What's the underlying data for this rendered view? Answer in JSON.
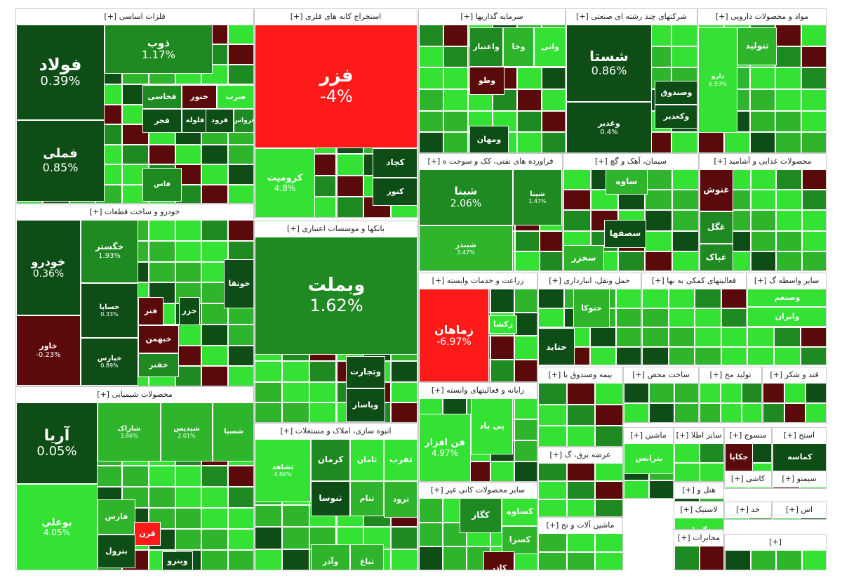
{
  "colors": {
    "dark_green": "#0f4d16",
    "mid_green": "#1f8a22",
    "green": "#2fb52c",
    "light_green": "#33e233",
    "red": "#ff1a1a",
    "dark_red": "#5a0a0a"
  },
  "chart_data": {
    "type": "heatmap",
    "title": "",
    "sectors": [
      {
        "name": "فلزات اساسی [+]",
        "cells": [
          {
            "symbol": "فولاد",
            "change": "0.39%",
            "color": "dark_green"
          },
          {
            "symbol": "فملی",
            "change": "0.85%",
            "color": "dark_green"
          },
          {
            "symbol": "ذوب",
            "change": "1.17%",
            "color": "mid_green"
          },
          {
            "symbol": "خنور",
            "change": "",
            "color": "dark_red"
          },
          {
            "symbol": "ضرب",
            "change": "",
            "color": "light_green"
          },
          {
            "symbol": "فخاسی",
            "change": "",
            "color": "mid_green"
          },
          {
            "symbol": "فجر",
            "change": "",
            "color": "dark_green"
          },
          {
            "symbol": "فلوله",
            "change": "",
            "color": "dark_green"
          },
          {
            "symbol": "فرود",
            "change": "",
            "color": "dark_green"
          },
          {
            "symbol": "فرواس",
            "change": "",
            "color": "mid_green"
          },
          {
            "symbol": "فاس",
            "change": "",
            "color": "mid_green"
          }
        ]
      },
      {
        "name": "استخراج کانه های فلزی [+]",
        "cells": [
          {
            "symbol": "فزر",
            "change": "-4%",
            "color": "red"
          },
          {
            "symbol": "کرومیت",
            "change": "4.8%",
            "color": "light_green"
          },
          {
            "symbol": "کچاد",
            "change": "",
            "color": "dark_green"
          },
          {
            "symbol": "کنور",
            "change": "",
            "color": "dark_green"
          }
        ]
      },
      {
        "name": "سرمایه گذاریها [+]",
        "cells": [
          {
            "symbol": "واعتبار",
            "change": "",
            "color": "mid_green"
          },
          {
            "symbol": "وخا",
            "change": "",
            "color": "green"
          },
          {
            "symbol": "واتي",
            "change": "",
            "color": "light_green"
          },
          {
            "symbol": "وطو",
            "change": "",
            "color": "dark_red"
          },
          {
            "symbol": "ومهان",
            "change": "",
            "color": "dark_green"
          }
        ]
      },
      {
        "name": "شرکتهای چند رشته ای صنعتی [+]",
        "cells": [
          {
            "symbol": "شستا",
            "change": "0.86%",
            "color": "dark_green"
          },
          {
            "symbol": "وصندوق",
            "change": "",
            "color": "dark_green"
          },
          {
            "symbol": "وکغدیر",
            "change": "",
            "color": "dark_green"
          },
          {
            "symbol": "وغدیر",
            "change": "0.4%",
            "color": "dark_green"
          }
        ]
      },
      {
        "name": "مواد و محصولات دارویی [+]",
        "cells": [
          {
            "symbol": "تنولید",
            "change": "",
            "color": "green"
          },
          {
            "symbol": "دارو",
            "change": "6.93%",
            "color": "light_green"
          }
        ]
      },
      {
        "name": "خودرو و ساخت قطعات [+]",
        "cells": [
          {
            "symbol": "خودرو",
            "change": "0.36%",
            "color": "dark_green"
          },
          {
            "symbol": "خاور",
            "change": "-0.23%",
            "color": "dark_red"
          },
          {
            "symbol": "خگستر",
            "change": "1.93%",
            "color": "mid_green"
          },
          {
            "symbol": "خساپا",
            "change": "0.33%",
            "color": "dark_green"
          },
          {
            "symbol": "خپارس",
            "change": "0.89%",
            "color": "dark_green"
          },
          {
            "symbol": "خوتقا",
            "change": "",
            "color": "dark_green"
          },
          {
            "symbol": "فنر",
            "change": "",
            "color": "dark_red"
          },
          {
            "symbol": "خزر",
            "change": "",
            "color": "dark_green"
          },
          {
            "symbol": "خبهمن",
            "change": "",
            "color": "dark_red"
          },
          {
            "symbol": "خفنر",
            "change": "",
            "color": "mid_green"
          }
        ]
      },
      {
        "name": "بانکها و موسسات اعتباری [+]",
        "cells": [
          {
            "symbol": "وبملت",
            "change": "1.62%",
            "color": "mid_green"
          },
          {
            "symbol": "وتجارت",
            "change": "",
            "color": "dark_green"
          },
          {
            "symbol": "وپاسار",
            "change": "",
            "color": "dark_green"
          }
        ]
      },
      {
        "name": "فراورده های نفتی، کک و سوخت ه [+]",
        "cells": [
          {
            "symbol": "شبنا",
            "change": "2.06%",
            "color": "mid_green"
          },
          {
            "symbol": "شپنا",
            "change": "1.47%",
            "color": "mid_green"
          },
          {
            "symbol": "شبندر",
            "change": "3.47%",
            "color": "green"
          }
        ]
      },
      {
        "name": "سیمان، آهک و گچ [+]",
        "cells": [
          {
            "symbol": "ساوه",
            "change": "",
            "color": "green"
          },
          {
            "symbol": "سصفها",
            "change": "",
            "color": "dark_green"
          },
          {
            "symbol": "سخزر",
            "change": "",
            "color": "green"
          }
        ]
      },
      {
        "name": "محصولات غذایی و آشامید [+]",
        "cells": [
          {
            "symbol": "غنوش",
            "change": "",
            "color": "dark_red"
          },
          {
            "symbol": "غگل",
            "change": "",
            "color": "mid_green"
          },
          {
            "symbol": "غپاک",
            "change": "",
            "color": "mid_green"
          }
        ]
      },
      {
        "name": "زراعت و خدمات وابسته [+]",
        "cells": [
          {
            "symbol": "زماهان",
            "change": "-6.97%",
            "color": "red"
          },
          {
            "symbol": "زکشا",
            "change": "",
            "color": "light_green"
          }
        ]
      },
      {
        "name": "حمل ونقل، انبارداری [+]",
        "cells": [
          {
            "symbol": "حتوکا",
            "change": "",
            "color": "green"
          },
          {
            "symbol": "حتاید",
            "change": "",
            "color": "dark_green"
          }
        ]
      },
      {
        "name": "فعالیتهای کمکی به نها [+]",
        "cells": []
      },
      {
        "name": "سایر واسطه گ [+]",
        "cells": [
          {
            "symbol": "وصنعم",
            "change": "",
            "color": "light_green"
          },
          {
            "symbol": "وایران",
            "change": "",
            "color": "light_green"
          }
        ]
      },
      {
        "name": "محصولات شیمیایی [+]",
        "cells": [
          {
            "symbol": "آریا",
            "change": "0.05%",
            "color": "dark_green"
          },
          {
            "symbol": "بوعلي",
            "change": "4.05%",
            "color": "light_green"
          },
          {
            "symbol": "شاراک",
            "change": "3.86%",
            "color": "green"
          },
          {
            "symbol": "شپدیس",
            "change": "2.01%",
            "color": "green"
          },
          {
            "symbol": "شسپا",
            "change": "",
            "color": "green"
          },
          {
            "symbol": "فارس",
            "change": "",
            "color": "green"
          },
          {
            "symbol": "قرن",
            "change": "",
            "color": "red"
          },
          {
            "symbol": "بترول",
            "change": "",
            "color": "dark_green"
          },
          {
            "symbol": "وبترو",
            "change": "",
            "color": "dark_green"
          }
        ]
      },
      {
        "name": "انبوه سازی، املاک و مستغلات [+]",
        "cells": [
          {
            "symbol": "ثشاهد",
            "change": "4.86%",
            "color": "light_green"
          },
          {
            "symbol": "کرمان",
            "change": "",
            "color": "mid_green"
          },
          {
            "symbol": "ثامان",
            "change": "",
            "color": "light_green"
          },
          {
            "symbol": "ثفرب",
            "change": "",
            "color": "light_green"
          },
          {
            "symbol": "ثنوسا",
            "change": "",
            "color": "dark_green"
          },
          {
            "symbol": "ثنام",
            "change": "",
            "color": "green"
          },
          {
            "symbol": "ثرود",
            "change": "",
            "color": "green"
          },
          {
            "symbol": "وآذر",
            "change": "",
            "color": "green"
          },
          {
            "symbol": "ثباغ",
            "change": "",
            "color": "green"
          }
        ]
      },
      {
        "name": "رایانه و فعالیتهای وابسته [+]",
        "cells": [
          {
            "symbol": "فن افزار",
            "change": "4.97%",
            "color": "light_green"
          },
          {
            "symbol": "پی پاد",
            "change": "",
            "color": "light_green"
          }
        ]
      },
      {
        "name": "سایر محصولات کانی غیر [+]",
        "cells": [
          {
            "symbol": "کگاز",
            "change": "",
            "color": "mid_green"
          },
          {
            "symbol": "کساوه",
            "change": "",
            "color": "light_green"
          },
          {
            "symbol": "کسرا",
            "change": "",
            "color": "green"
          },
          {
            "symbol": "کاذر",
            "change": "",
            "color": "dark_red"
          }
        ]
      },
      {
        "name": "بیمه وصندوق با [+]",
        "cells": []
      },
      {
        "name": "ساخت محص [+]",
        "cells": []
      },
      {
        "name": "تولید مح [+]",
        "cells": []
      },
      {
        "name": "قند و شکر [+]",
        "cells": []
      },
      {
        "name": "ماشین [+]",
        "cells": [
          {
            "symbol": "بترانس",
            "change": "",
            "color": "light_green"
          }
        ]
      },
      {
        "name": "سایر اطلا [+]",
        "cells": []
      },
      {
        "name": "منسوج [+]",
        "cells": [
          {
            "symbol": "جکاپا",
            "change": "",
            "color": "dark_red"
          }
        ]
      },
      {
        "name": "استخ [+]",
        "cells": [
          {
            "symbol": "کماسه",
            "change": "",
            "color": "dark_green"
          }
        ]
      },
      {
        "name": "عرضه برق، گ [+]",
        "cells": []
      },
      {
        "name": "هتل و [+]",
        "cells": []
      },
      {
        "name": "کاشی [+]",
        "cells": []
      },
      {
        "name": "سیمنو [+]",
        "cells": []
      },
      {
        "name": "لاستیک [+]",
        "cells": [
          {
            "symbol": "گدنا",
            "change": "",
            "color": "light_green"
          }
        ]
      },
      {
        "name": "خد [+]",
        "cells": []
      },
      {
        "name": "اس [+]",
        "cells": []
      },
      {
        "name": "ماشین آلات و تج [+]",
        "cells": []
      },
      {
        "name": "محابرات [+]",
        "cells": []
      },
      {
        "name": "[+]",
        "cells": []
      }
    ]
  }
}
